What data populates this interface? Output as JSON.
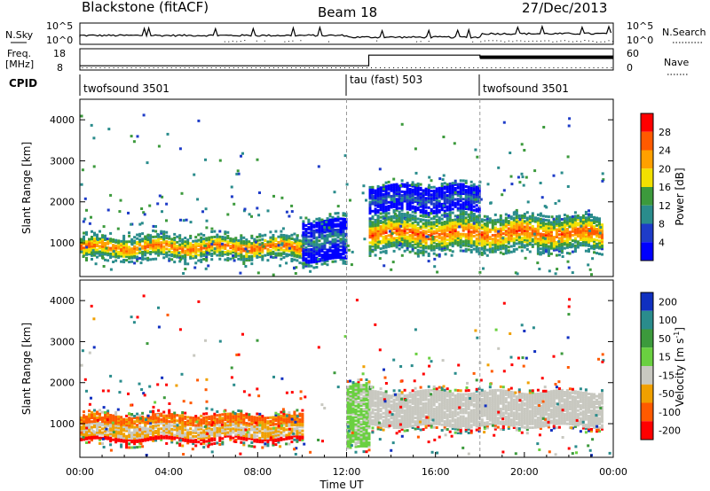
{
  "header": {
    "station": "Blackstone (fitACF)",
    "beam": "Beam 18",
    "date": "27/Dec/2013"
  },
  "nsky_panel": {
    "left_label": "N.Sky",
    "right_label": "N.Search",
    "left_ticks": [
      "10^5",
      "10^0"
    ],
    "right_ticks": [
      "10^5",
      "10^0"
    ]
  },
  "freq_panel": {
    "left_label_1": "Freq.",
    "left_label_2": "[MHz]",
    "right_label": "Nave",
    "left_ticks": [
      "18",
      "8"
    ],
    "right_ticks": [
      "60",
      "0"
    ],
    "freq_steps": [
      {
        "from_h": 0,
        "to_h": 13,
        "value": 10
      },
      {
        "from_h": 13,
        "to_h": 18,
        "value": 15
      },
      {
        "from_h": 18,
        "to_h": 24,
        "value": 14
      }
    ]
  },
  "cpid": {
    "label": "CPID",
    "segments": [
      {
        "start_h": 0,
        "name": "twofsound 3501"
      },
      {
        "start_h": 12,
        "name": "tau (fast) 503"
      },
      {
        "start_h": 18,
        "name": "twofsound 3501"
      }
    ]
  },
  "power_panel": {
    "ylabel": "Slant Range [km]",
    "yticks": [
      "1000",
      "2000",
      "3000",
      "4000"
    ],
    "colorbar_label": "Power [dB]",
    "colorbar_ticks": [
      "28",
      "24",
      "20",
      "16",
      "12",
      "8",
      "4"
    ],
    "colors": [
      "#ff0000",
      "#ff5a00",
      "#ffa000",
      "#f2e000",
      "#3c9a3c",
      "#2a8c8c",
      "#1e3cc8",
      "#0000ff"
    ]
  },
  "velocity_panel": {
    "ylabel": "Slant Range [km]",
    "yticks": [
      "1000",
      "2000",
      "3000",
      "4000"
    ],
    "colorbar_label": "Velocity [m s",
    "colorbar_label_sup": "-1",
    "colorbar_label_end": "]",
    "colorbar_ticks": [
      "200",
      "100",
      "50",
      "15",
      "-15",
      "-50",
      "-100",
      "-200"
    ],
    "colors": [
      "#1030c0",
      "#2a8c8c",
      "#3c9a3c",
      "#6ad040",
      "#c8c8c0",
      "#f0a000",
      "#ff5a00",
      "#ff0000"
    ]
  },
  "xaxis": {
    "label": "Time UT",
    "ticks": [
      "00:00",
      "04:00",
      "08:00",
      "12:00",
      "16:00",
      "20:00",
      "00:00"
    ]
  },
  "chart_data": {
    "type": "heatmap",
    "title": "Blackstone (fitACF)",
    "xlabel": "Time UT",
    "ylabel": "Slant Range [km]",
    "xlim_hours": [
      0,
      24
    ],
    "ylim": [
      180,
      4500
    ],
    "grid": false,
    "legend": "colorbar-right",
    "power_scale_db": [
      0,
      30
    ],
    "velocity_scale_ms": [
      -250,
      250
    ],
    "mode_boundaries_h": [
      12,
      18
    ],
    "power_bands": [
      {
        "from_h": 0,
        "to_h": 10,
        "range_low_km": 700,
        "range_high_km": 1150,
        "core_db": 26
      },
      {
        "from_h": 10,
        "to_h": 12,
        "range_low_km": 600,
        "range_high_km": 1600,
        "core_db": 10
      },
      {
        "from_h": 13,
        "to_h": 23.5,
        "range_low_km": 900,
        "range_high_km": 1650,
        "core_db": 26
      },
      {
        "from_h": 13,
        "to_h": 18,
        "range_low_km": 1800,
        "range_high_km": 2400,
        "core_db": 8
      }
    ],
    "velocity_bands": [
      {
        "from_h": 0,
        "to_h": 10,
        "range_low_km": 600,
        "range_high_km": 1250,
        "velocity_ms": -30
      },
      {
        "from_h": 12,
        "to_h": 13,
        "range_low_km": 400,
        "range_high_km": 2000,
        "velocity_ms": 20
      },
      {
        "from_h": 13,
        "to_h": 23.5,
        "range_low_km": 950,
        "range_high_km": 1800,
        "velocity_ms": 0
      }
    ]
  }
}
